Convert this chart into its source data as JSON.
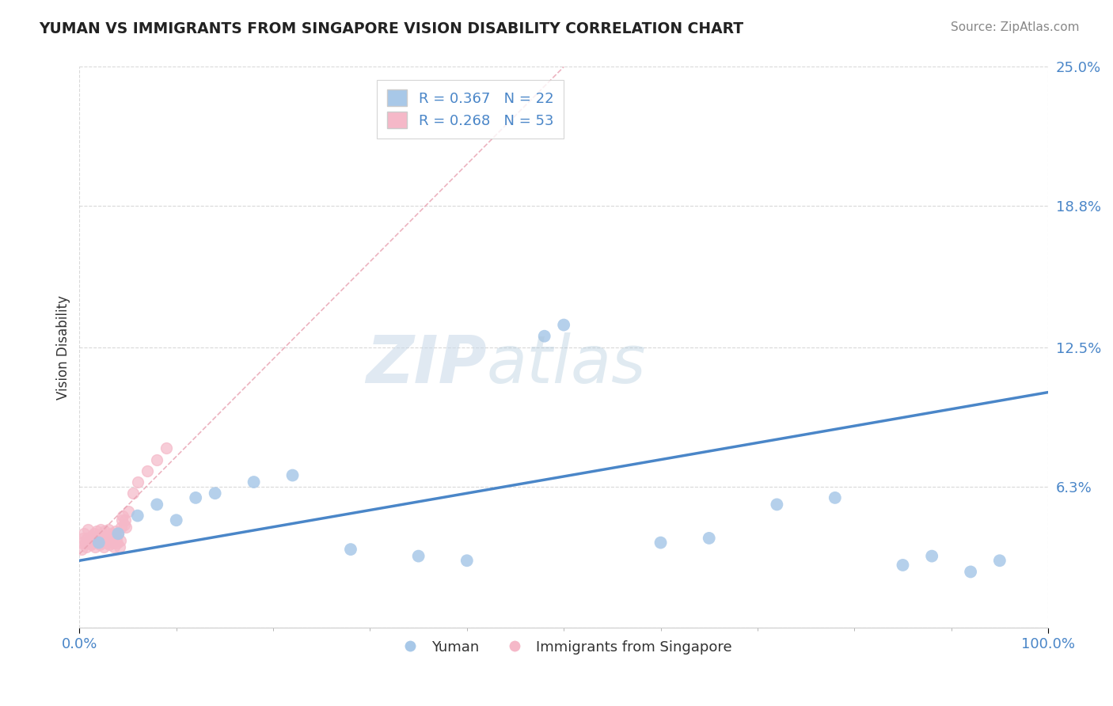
{
  "title": "YUMAN VS IMMIGRANTS FROM SINGAPORE VISION DISABILITY CORRELATION CHART",
  "source": "Source: ZipAtlas.com",
  "ylabel": "Vision Disability",
  "xlim": [
    0,
    1.0
  ],
  "ylim": [
    0,
    0.25
  ],
  "yticks": [
    0.0,
    0.063,
    0.125,
    0.188,
    0.25
  ],
  "ytick_labels": [
    "",
    "6.3%",
    "12.5%",
    "18.8%",
    "25.0%"
  ],
  "xtick_labels": [
    "0.0%",
    "100.0%"
  ],
  "xticks": [
    0,
    1.0
  ],
  "blue_R": 0.367,
  "blue_N": 22,
  "pink_R": 0.268,
  "pink_N": 53,
  "blue_color": "#a8c8e8",
  "pink_color": "#f5b8c8",
  "blue_line_color": "#4a86c8",
  "pink_line_color": "#e8a0b0",
  "watermark_zip": "ZIP",
  "watermark_atlas": "atlas",
  "legend_label_blue": "Yuman",
  "legend_label_pink": "Immigrants from Singapore",
  "blue_scatter_x": [
    0.02,
    0.04,
    0.06,
    0.08,
    0.1,
    0.12,
    0.14,
    0.18,
    0.22,
    0.28,
    0.35,
    0.4,
    0.48,
    0.5,
    0.6,
    0.65,
    0.72,
    0.78,
    0.85,
    0.88,
    0.92,
    0.95
  ],
  "blue_scatter_y": [
    0.038,
    0.042,
    0.05,
    0.055,
    0.048,
    0.058,
    0.06,
    0.065,
    0.068,
    0.035,
    0.032,
    0.03,
    0.13,
    0.135,
    0.038,
    0.04,
    0.055,
    0.058,
    0.028,
    0.032,
    0.025,
    0.03
  ],
  "pink_scatter_x": [
    0.002,
    0.003,
    0.004,
    0.005,
    0.006,
    0.007,
    0.008,
    0.009,
    0.01,
    0.011,
    0.012,
    0.013,
    0.014,
    0.015,
    0.016,
    0.017,
    0.018,
    0.019,
    0.02,
    0.021,
    0.022,
    0.023,
    0.024,
    0.025,
    0.026,
    0.027,
    0.028,
    0.029,
    0.03,
    0.031,
    0.032,
    0.033,
    0.034,
    0.035,
    0.036,
    0.037,
    0.038,
    0.039,
    0.04,
    0.041,
    0.042,
    0.043,
    0.044,
    0.045,
    0.046,
    0.047,
    0.048,
    0.05,
    0.055,
    0.06,
    0.07,
    0.08,
    0.09
  ],
  "pink_scatter_y": [
    0.035,
    0.038,
    0.04,
    0.042,
    0.038,
    0.036,
    0.04,
    0.044,
    0.038,
    0.04,
    0.037,
    0.041,
    0.038,
    0.042,
    0.036,
    0.039,
    0.043,
    0.038,
    0.041,
    0.037,
    0.044,
    0.038,
    0.04,
    0.036,
    0.043,
    0.041,
    0.038,
    0.04,
    0.044,
    0.037,
    0.039,
    0.042,
    0.038,
    0.041,
    0.036,
    0.043,
    0.04,
    0.038,
    0.042,
    0.036,
    0.039,
    0.045,
    0.048,
    0.05,
    0.046,
    0.048,
    0.045,
    0.052,
    0.06,
    0.065,
    0.07,
    0.075,
    0.08
  ],
  "blue_line_x0": 0.0,
  "blue_line_y0": 0.03,
  "blue_line_x1": 1.0,
  "blue_line_y1": 0.105,
  "pink_line_x0": 0.0,
  "pink_line_y0": 0.033,
  "pink_line_x1": 0.5,
  "pink_line_y1": 0.25,
  "background_color": "#ffffff",
  "grid_color": "#d0d0d0"
}
